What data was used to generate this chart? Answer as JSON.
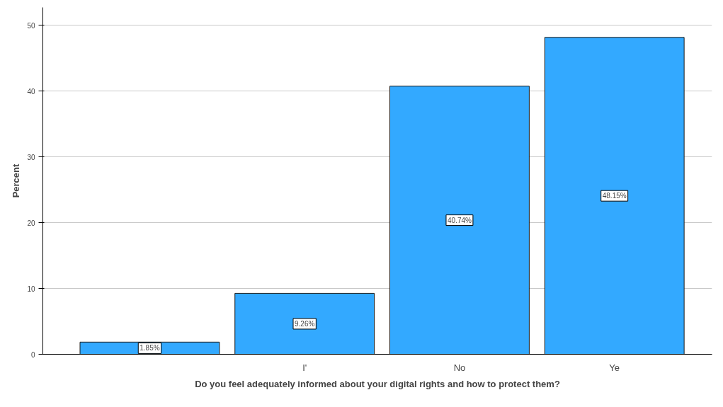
{
  "chart_data": {
    "type": "bar",
    "xlabel": "Do you feel adequately informed about your digital rights and how to protect them?",
    "ylabel": "Percent",
    "categories": [
      null,
      "I'",
      "No",
      "Ye"
    ],
    "values": [
      1.85,
      9.26,
      40.74,
      48.15
    ],
    "value_labels": [
      "1.85%",
      "9.26%",
      "40.74%",
      "48.15%"
    ],
    "color": "#33a9ff",
    "ylim": [
      0,
      52.7
    ],
    "yticks": [
      0,
      10,
      20,
      30,
      40,
      50
    ],
    "grid": "y"
  }
}
